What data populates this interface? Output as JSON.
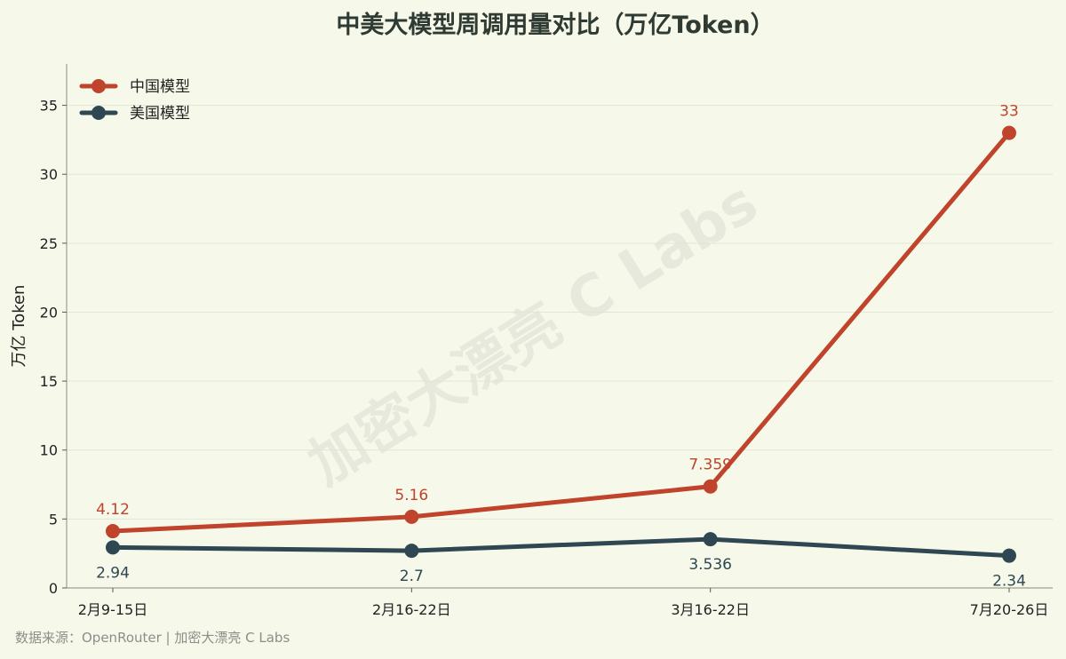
{
  "chart_data": {
    "type": "line",
    "title": "中美大模型周调用量对比（万亿Token）",
    "ylabel": "万亿 Token",
    "xlabel": "",
    "categories": [
      "2月9-15日",
      "2月16-22日",
      "3月16-22日",
      "7月20-26日"
    ],
    "ylim": [
      0,
      38
    ],
    "yticks": [
      0,
      5,
      10,
      15,
      20,
      25,
      30,
      35
    ],
    "grid": "horizontal",
    "legend_position": "top-left",
    "series": [
      {
        "name": "中国模型",
        "color": "#c0432c",
        "values": [
          4.12,
          5.16,
          7.359,
          33
        ],
        "labels": [
          "4.12",
          "5.16",
          "7.359",
          "33"
        ]
      },
      {
        "name": "美国模型",
        "color": "#2e4753",
        "values": [
          2.94,
          2.7,
          3.536,
          2.34
        ],
        "labels": [
          "2.94",
          "2.7",
          "3.536",
          "2.34"
        ]
      }
    ]
  },
  "watermark": "加密大漂亮 C Labs",
  "source": "数据来源：OpenRouter | 加密大漂亮 C Labs",
  "colors": {
    "background": "#f6f8ea",
    "china": "#c0432c",
    "usa": "#2e4753"
  }
}
